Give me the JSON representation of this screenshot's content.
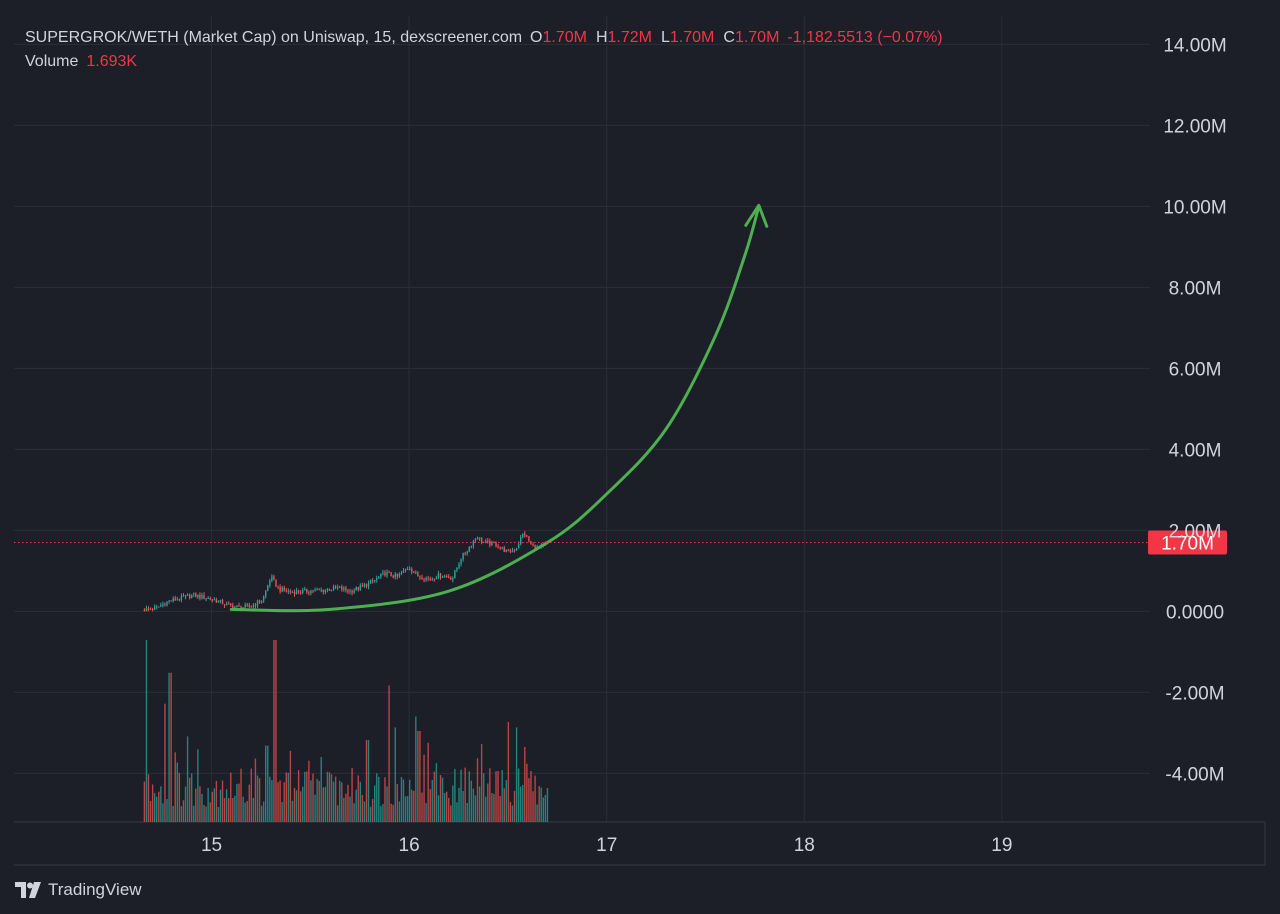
{
  "header": {
    "title": "SUPERGROK/WETH (Market Cap) on Uniswap, 15, dexscreener.com",
    "ohlc": [
      {
        "key": "O",
        "value": "1.70M"
      },
      {
        "key": "H",
        "value": "1.72M"
      },
      {
        "key": "L",
        "value": "1.70M"
      },
      {
        "key": "C",
        "value": "1.70M"
      }
    ],
    "change": "-1,182.5513 (−0.07%)",
    "volume_label": "Volume",
    "volume_value": "1.693K"
  },
  "price_line": {
    "value": 1.7,
    "label": "1.70M"
  },
  "brand": {
    "name": "TradingView",
    "icon": "tradingview-logo-icon"
  },
  "colors": {
    "background": "#1c1e28",
    "grid": "#2a2e39",
    "axis_text": "#d1d4dc",
    "up": "#26a69a",
    "down": "#ef5350",
    "price_line": "#f23645",
    "arrow": "#4caf50"
  },
  "chart_data": {
    "type": "candlestick",
    "xlim": [
      14.0,
      19.75
    ],
    "ylim": [
      -5.2,
      14.7
    ],
    "y_ticks": [
      {
        "v": 14,
        "label": "14.00M"
      },
      {
        "v": 12,
        "label": "12.00M"
      },
      {
        "v": 10,
        "label": "10.00M"
      },
      {
        "v": 8,
        "label": "8.00M"
      },
      {
        "v": 6,
        "label": "6.00M"
      },
      {
        "v": 4,
        "label": "4.00M"
      },
      {
        "v": 2,
        "label": "2.00M"
      },
      {
        "v": 0,
        "label": "0.0000"
      },
      {
        "v": -2,
        "label": "-2.00M"
      },
      {
        "v": -4,
        "label": "-4.00M"
      }
    ],
    "x_ticks": [
      {
        "v": 15,
        "label": "15"
      },
      {
        "v": 16,
        "label": "16"
      },
      {
        "v": 17,
        "label": "17"
      },
      {
        "v": 18,
        "label": "18"
      },
      {
        "v": 19,
        "label": "19"
      }
    ],
    "price_path": [
      [
        14.66,
        0.04
      ],
      [
        14.72,
        0.08
      ],
      [
        14.78,
        0.25
      ],
      [
        14.84,
        0.32
      ],
      [
        14.9,
        0.4
      ],
      [
        14.96,
        0.35
      ],
      [
        15.02,
        0.28
      ],
      [
        15.08,
        0.15
      ],
      [
        15.14,
        0.1
      ],
      [
        15.2,
        0.12
      ],
      [
        15.26,
        0.3
      ],
      [
        15.3,
        0.85
      ],
      [
        15.34,
        0.55
      ],
      [
        15.4,
        0.48
      ],
      [
        15.48,
        0.5
      ],
      [
        15.56,
        0.52
      ],
      [
        15.64,
        0.58
      ],
      [
        15.7,
        0.5
      ],
      [
        15.76,
        0.6
      ],
      [
        15.82,
        0.75
      ],
      [
        15.88,
        0.95
      ],
      [
        15.94,
        0.85
      ],
      [
        16.0,
        1.1
      ],
      [
        16.04,
        0.88
      ],
      [
        16.1,
        0.8
      ],
      [
        16.16,
        0.9
      ],
      [
        16.22,
        0.82
      ],
      [
        16.26,
        1.3
      ],
      [
        16.3,
        1.55
      ],
      [
        16.34,
        1.85
      ],
      [
        16.38,
        1.7
      ],
      [
        16.44,
        1.65
      ],
      [
        16.5,
        1.45
      ],
      [
        16.54,
        1.55
      ],
      [
        16.58,
        1.95
      ],
      [
        16.62,
        1.62
      ],
      [
        16.66,
        1.55
      ],
      [
        16.7,
        1.7
      ]
    ],
    "volume_spikes": [
      {
        "x": 14.67,
        "v": 1.0
      },
      {
        "x": 14.79,
        "v": 0.82
      },
      {
        "x": 14.76,
        "v": 0.65
      },
      {
        "x": 14.88,
        "v": 0.47
      },
      {
        "x": 14.93,
        "v": 0.4
      },
      {
        "x": 15.32,
        "v": 1.0
      },
      {
        "x": 15.28,
        "v": 0.42
      },
      {
        "x": 15.9,
        "v": 0.75
      },
      {
        "x": 15.93,
        "v": 0.52
      },
      {
        "x": 15.79,
        "v": 0.45
      },
      {
        "x": 16.03,
        "v": 0.58
      },
      {
        "x": 16.05,
        "v": 0.5
      },
      {
        "x": 16.35,
        "v": 0.35
      },
      {
        "x": 16.5,
        "v": 0.55
      },
      {
        "x": 16.54,
        "v": 0.52
      },
      {
        "x": 16.59,
        "v": 0.32
      }
    ],
    "arrow_path": [
      [
        15.1,
        0.05
      ],
      [
        15.6,
        0.05
      ],
      [
        16.2,
        0.5
      ],
      [
        16.7,
        1.7
      ],
      [
        17.0,
        2.9
      ],
      [
        17.3,
        4.5
      ],
      [
        17.55,
        6.8
      ],
      [
        17.7,
        8.8
      ],
      [
        17.77,
        10.0
      ]
    ],
    "legend": "none",
    "grid": true
  }
}
